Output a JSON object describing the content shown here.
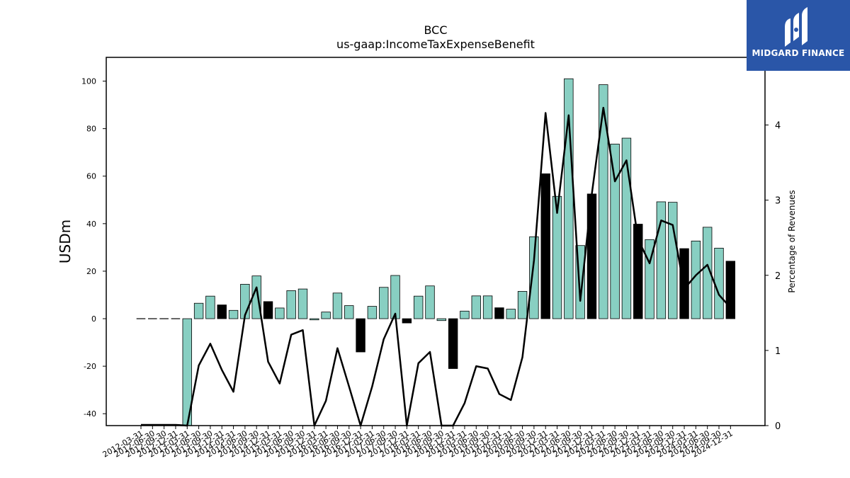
{
  "chart_data": {
    "type": "bar",
    "title": "BCC",
    "subtitle": "us-gaap:IncomeTaxExpenseBenefit",
    "ylabel": "USDm",
    "ylabel_right": "Percentage of Revenues",
    "ylim": [
      -45,
      110
    ],
    "ylim_right": [
      0,
      4.9
    ],
    "yticks": [
      -40,
      -20,
      0,
      20,
      40,
      60,
      80,
      100
    ],
    "yticks_right": [
      0,
      1,
      2,
      3,
      4
    ],
    "grid": false,
    "categories": [
      "2012-03-31",
      "2012-06-30",
      "2012-09-30",
      "2012-12-31",
      "2013-03-31",
      "2013-06-30",
      "2013-09-30",
      "2013-12-31",
      "2014-03-31",
      "2014-06-30",
      "2014-09-30",
      "2014-12-31",
      "2015-03-31",
      "2015-06-30",
      "2015-09-30",
      "2015-12-31",
      "2016-03-31",
      "2016-06-30",
      "2016-09-30",
      "2016-12-31",
      "2017-03-31",
      "2017-06-30",
      "2017-09-30",
      "2017-12-31",
      "2018-03-31",
      "2018-06-30",
      "2018-09-30",
      "2018-12-31",
      "2019-03-31",
      "2019-06-30",
      "2019-09-30",
      "2019-12-31",
      "2020-03-31",
      "2020-06-30",
      "2020-09-30",
      "2020-12-31",
      "2021-03-31",
      "2021-06-30",
      "2021-09-30",
      "2021-12-31",
      "2022-03-31",
      "2022-06-30",
      "2022-09-30",
      "2022-12-31",
      "2023-03-31",
      "2023-06-30",
      "2023-09-30",
      "2023-12-31",
      "2024-03-31",
      "2024-06-30",
      "2024-09-30",
      "2024-12-31"
    ],
    "series": [
      {
        "values": [
          0,
          0,
          0,
          0,
          -46,
          6.5,
          9.5,
          5.8,
          3.5,
          14.5,
          18,
          7.2,
          4.5,
          11.8,
          12.5,
          -0.5,
          2.8,
          10.8,
          5.5,
          -14,
          5.2,
          13.2,
          18.2,
          -1.8,
          9.5,
          13.8,
          -0.8,
          -21,
          3.2,
          9.6,
          9.6,
          4.6,
          4,
          11.5,
          34.5,
          61,
          51.5,
          101,
          30.8,
          52.5,
          98.5,
          73.5,
          76,
          39.8,
          33.3,
          49.2,
          49,
          29.5,
          32.7,
          38.5,
          29.7,
          24.2
        ],
        "highlight": [
          false,
          false,
          false,
          false,
          false,
          false,
          false,
          true,
          false,
          false,
          false,
          true,
          false,
          false,
          false,
          false,
          false,
          false,
          false,
          true,
          false,
          false,
          false,
          true,
          false,
          false,
          false,
          true,
          false,
          false,
          false,
          true,
          false,
          false,
          false,
          true,
          false,
          false,
          false,
          true,
          false,
          false,
          false,
          true,
          false,
          false,
          false,
          true,
          false,
          false,
          false,
          true
        ]
      },
      {
        "axis": "right",
        "type": "line",
        "values": [
          0.01,
          0.01,
          0.01,
          0.01,
          -0.5,
          0.8,
          1.09,
          0.74,
          0.45,
          1.47,
          1.84,
          0.85,
          0.56,
          1.21,
          1.27,
          -0.1,
          0.33,
          1.03,
          0.52,
          -0.8,
          0.52,
          1.15,
          1.49,
          -0.2,
          0.83,
          0.98,
          -0.1,
          -0.9,
          0.3,
          0.79,
          0.76,
          0.42,
          0.34,
          0.91,
          2.2,
          4.16,
          2.83,
          4.13,
          1.66,
          3.08,
          4.23,
          3.25,
          3.53,
          2.48,
          2.16,
          2.73,
          2.67,
          1.82,
          2.0,
          2.14,
          1.74,
          1.57
        ]
      }
    ],
    "colors": {
      "bar": "#88cfc2",
      "bar_highlight": "#000000",
      "line": "#000000"
    }
  },
  "brand": {
    "name": "MIDGARD FINANCE",
    "logo_color": "#2a56a8",
    "icon": "midgard-logo-icon"
  }
}
